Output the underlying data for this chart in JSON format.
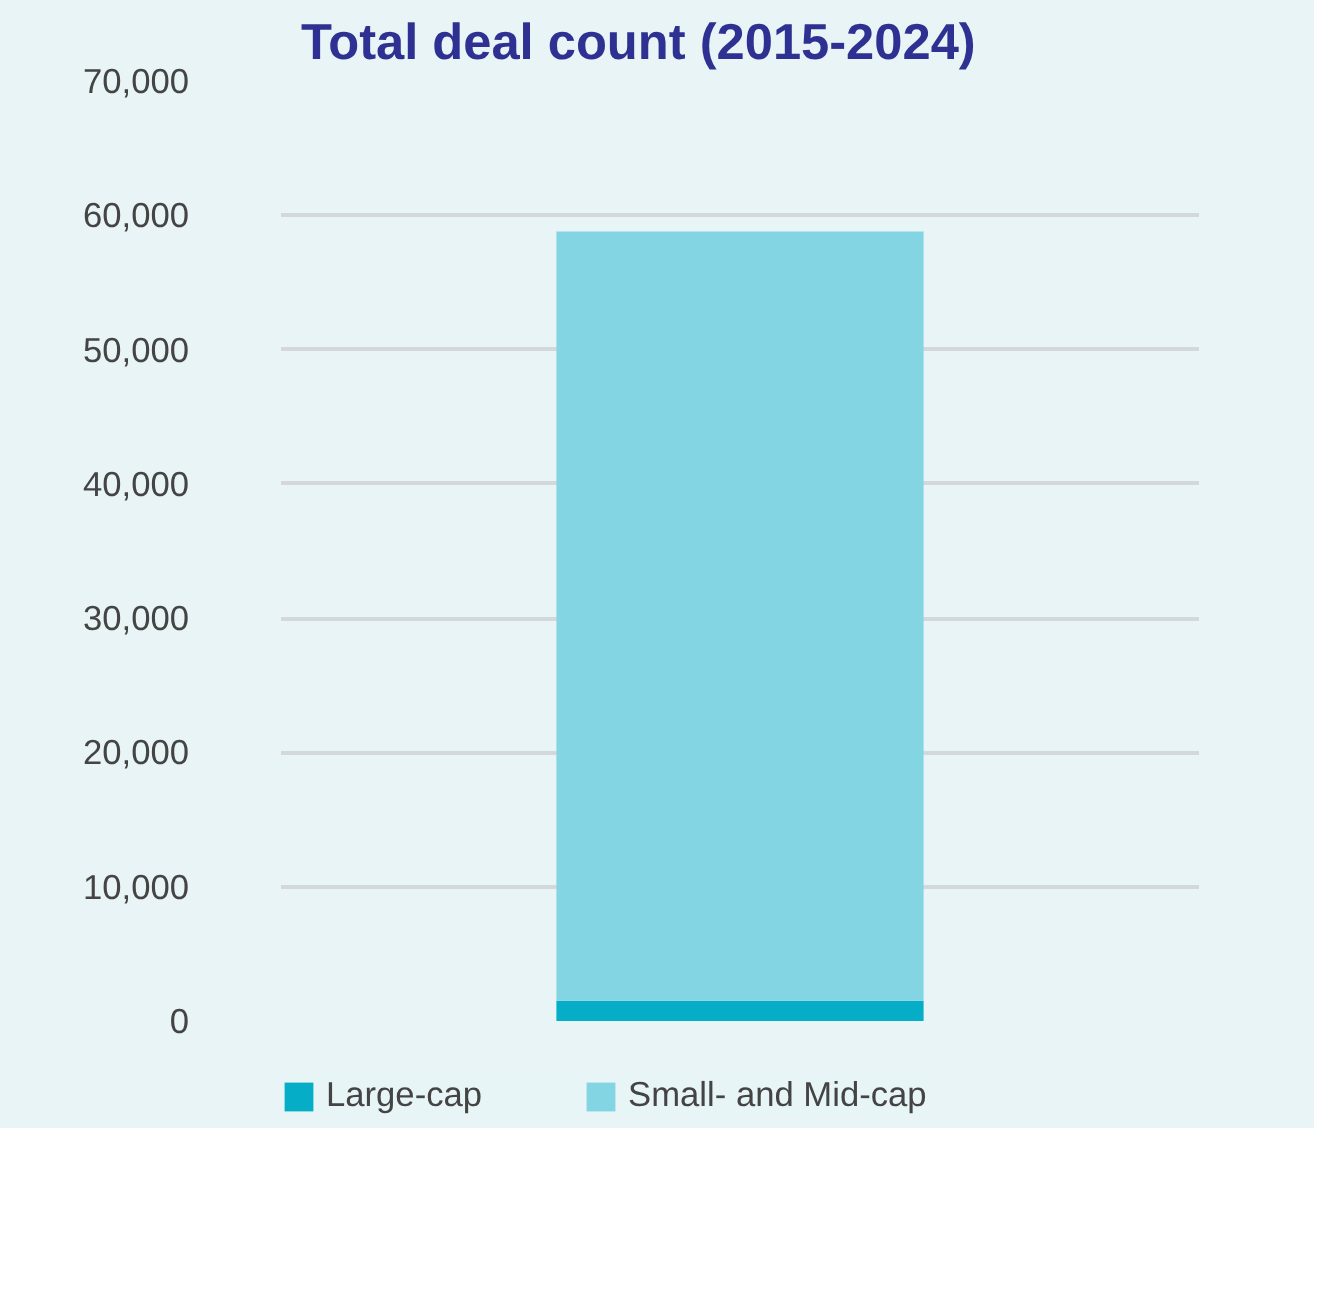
{
  "chart_data": {
    "type": "bar",
    "title": "Total deal count (2015-2024)",
    "categories": [
      null
    ],
    "stacked": true,
    "series": [
      {
        "name": "Large-cap",
        "color": "#05aec6",
        "values": [
          1500
        ]
      },
      {
        "name": "Small- and Mid-cap",
        "color": "#83d5e3",
        "values": [
          57300
        ]
      }
    ],
    "ylim": [
      0,
      70000
    ],
    "yticks": [
      {
        "value": 0,
        "label": "0"
      },
      {
        "value": 10000,
        "label": "10,000"
      },
      {
        "value": 20000,
        "label": "20,000"
      },
      {
        "value": 30000,
        "label": "30,000"
      },
      {
        "value": 40000,
        "label": "40,000"
      },
      {
        "value": 50000,
        "label": "50,000"
      },
      {
        "value": 60000,
        "label": "60,000"
      },
      {
        "value": 70000,
        "label": "70,000"
      }
    ],
    "grid": "y",
    "legend": "bottom",
    "tick_labels": "y"
  }
}
